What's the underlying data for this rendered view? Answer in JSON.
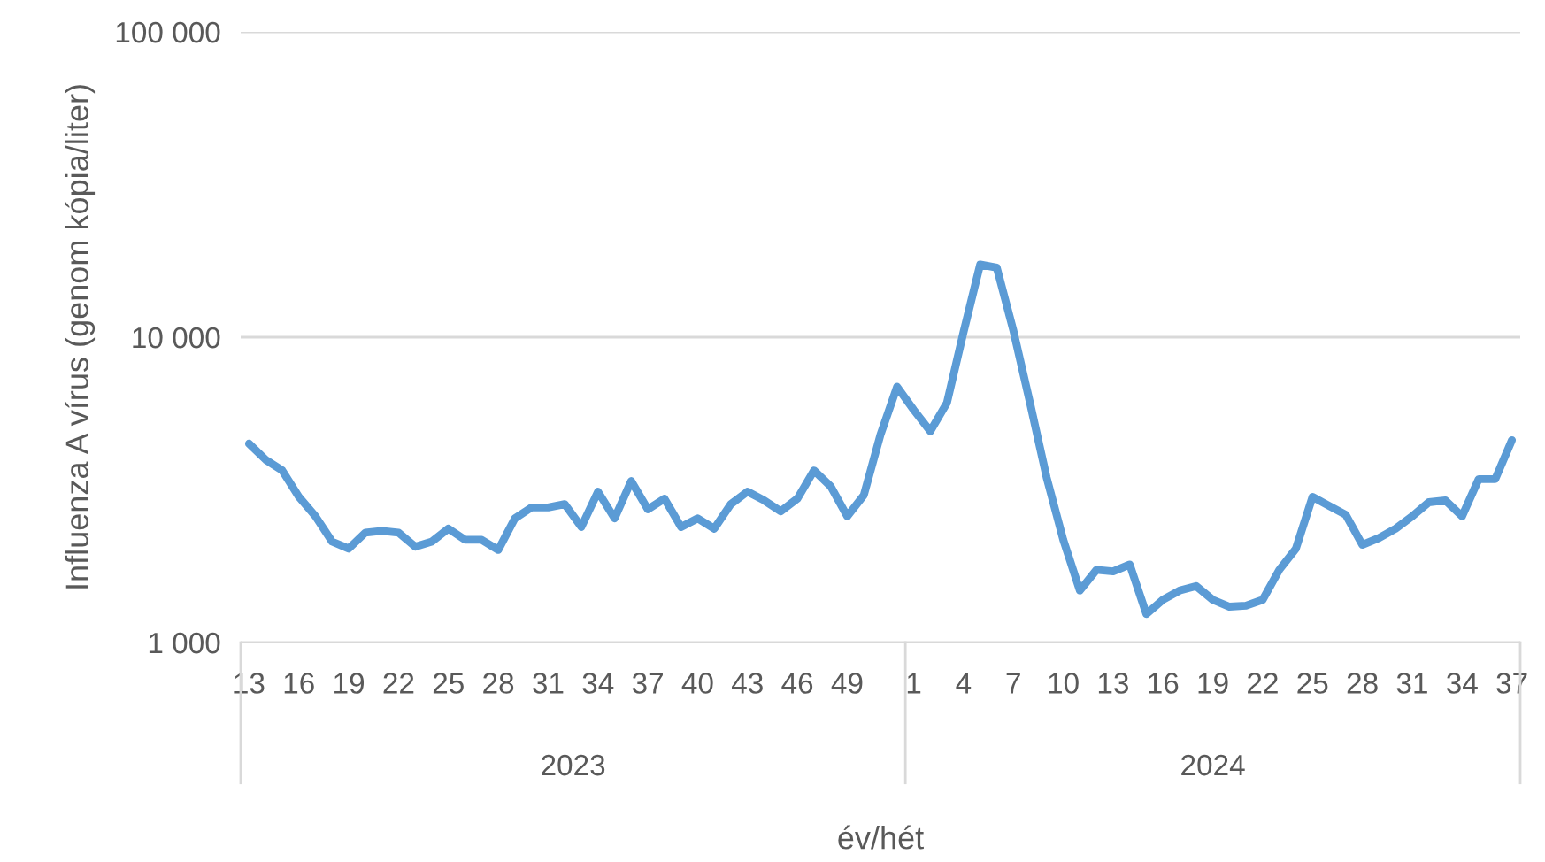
{
  "chart_data": {
    "type": "line",
    "xlabel": "év/hét",
    "ylabel": "Influenza A vírus (genom kópia/liter)",
    "categories": [
      "13",
      null,
      null,
      "16",
      null,
      null,
      "19",
      null,
      null,
      "22",
      null,
      null,
      "25",
      null,
      null,
      "28",
      null,
      null,
      "31",
      null,
      null,
      "34",
      null,
      null,
      "37",
      null,
      null,
      "40",
      null,
      null,
      "43",
      null,
      null,
      "46",
      null,
      null,
      "49",
      null,
      null,
      null,
      "1",
      null,
      null,
      "4",
      null,
      null,
      "7",
      null,
      null,
      "10",
      null,
      null,
      "13",
      null,
      null,
      "16",
      null,
      null,
      "19",
      null,
      null,
      "22",
      null,
      null,
      "25",
      null,
      null,
      "28",
      null,
      null,
      "31",
      null,
      null,
      "34",
      null,
      null,
      "37"
    ],
    "series": [
      {
        "color": "#5b9bd5",
        "values": [
          4480,
          3970,
          3660,
          3000,
          2590,
          2140,
          2030,
          2290,
          2320,
          2290,
          2060,
          2140,
          2360,
          2170,
          2170,
          2010,
          2550,
          2770,
          2770,
          2840,
          2390,
          3120,
          2550,
          3380,
          2730,
          2960,
          2390,
          2550,
          2360,
          2840,
          3120,
          2920,
          2690,
          2960,
          3660,
          3250,
          2590,
          3040,
          4790,
          6880,
          5780,
          4920,
          6090,
          10400,
          17300,
          16900,
          10500,
          6090,
          3470,
          2170,
          1480,
          1730,
          1710,
          1800,
          1240,
          1380,
          1480,
          1530,
          1380,
          1310,
          1320,
          1380,
          1730,
          2030,
          3000,
          2800,
          2620,
          2090,
          2200,
          2360,
          2590,
          2880,
          2920,
          2590,
          3430,
          3430,
          4600
        ]
      }
    ],
    "annotations": [
      "2023",
      "2024"
    ],
    "log": "y",
    "ylim": [
      1000,
      100000
    ],
    "yticks": [
      {
        "value": 1000,
        "label": "1 000"
      },
      {
        "value": 10000,
        "label": "10 000"
      },
      {
        "value": 100000,
        "label": "100 000"
      }
    ],
    "grid": "y",
    "marker": "none",
    "line_style": "solid"
  }
}
